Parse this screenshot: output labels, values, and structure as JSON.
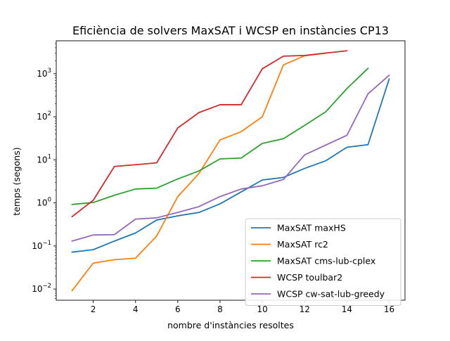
{
  "chart_data": {
    "type": "line",
    "title": "Eficiència de solvers MaxSAT i WCSP en instàncies CP13",
    "xlabel": "nombre d'instàncies resoltes",
    "ylabel": "temps (segons)",
    "xlim": [
      0.25,
      16.75
    ],
    "ylim": [
      0.0055,
      5800
    ],
    "yscale": "log",
    "xticks": [
      2,
      4,
      6,
      8,
      10,
      12,
      14,
      16
    ],
    "xtick_labels": [
      "2",
      "4",
      "6",
      "8",
      "10",
      "12",
      "14",
      "16"
    ],
    "yticks": [
      0.01,
      0.1,
      1,
      10,
      100,
      1000
    ],
    "ytick_labels": [
      {
        "base": "10",
        "exp": "−2"
      },
      {
        "base": "10",
        "exp": "−1"
      },
      {
        "base": "10",
        "exp": "0"
      },
      {
        "base": "10",
        "exp": "1"
      },
      {
        "base": "10",
        "exp": "2"
      },
      {
        "base": "10",
        "exp": "3"
      }
    ],
    "grid": false,
    "legend_position": "lower-right",
    "series": [
      {
        "name": "MaxSAT maxHS",
        "color": "#1f77b4",
        "x": [
          1,
          2,
          3,
          4,
          5,
          6,
          7,
          8,
          9,
          10,
          11,
          12,
          13,
          14,
          15,
          16
        ],
        "y": [
          0.072,
          0.082,
          0.13,
          0.2,
          0.4,
          0.5,
          0.6,
          0.95,
          1.8,
          3.4,
          3.9,
          6.3,
          9.5,
          19.5,
          22.5,
          750
        ]
      },
      {
        "name": "MaxSAT rc2",
        "color": "#ff7f0e",
        "x": [
          1,
          2,
          3,
          4,
          5,
          6,
          7,
          8,
          9,
          10,
          11,
          12,
          13
        ],
        "y": [
          0.0092,
          0.04,
          0.048,
          0.052,
          0.17,
          1.4,
          4.8,
          29,
          45,
          100,
          1600,
          2600,
          3000
        ]
      },
      {
        "name": "MaxSAT cms-lub-cplex",
        "color": "#2ca02c",
        "x": [
          1,
          2,
          3,
          4,
          5,
          6,
          7,
          8,
          9,
          10,
          11,
          12,
          13,
          14,
          15
        ],
        "y": [
          0.92,
          1.02,
          1.5,
          2.1,
          2.2,
          3.6,
          5.5,
          10.5,
          11,
          24,
          31,
          63,
          130,
          450,
          1330
        ]
      },
      {
        "name": "WCSP toulbar2",
        "color": "#d62728",
        "x": [
          1,
          2,
          3,
          4,
          5,
          6,
          7,
          8,
          9,
          10,
          11,
          12,
          13,
          14
        ],
        "y": [
          0.48,
          1.15,
          7,
          7.7,
          8.5,
          55,
          125,
          190,
          190,
          1300,
          2550,
          2650,
          3000,
          3400
        ]
      },
      {
        "name": "WCSP cw-sat-lub-greedy",
        "color": "#9467bd",
        "x": [
          1,
          2,
          3,
          4,
          5,
          6,
          7,
          8,
          9,
          10,
          11,
          12,
          13,
          14,
          15,
          16
        ],
        "y": [
          0.13,
          0.18,
          0.183,
          0.42,
          0.45,
          0.6,
          0.82,
          1.4,
          2.1,
          2.5,
          3.5,
          13,
          22,
          37,
          340,
          920
        ]
      }
    ]
  }
}
